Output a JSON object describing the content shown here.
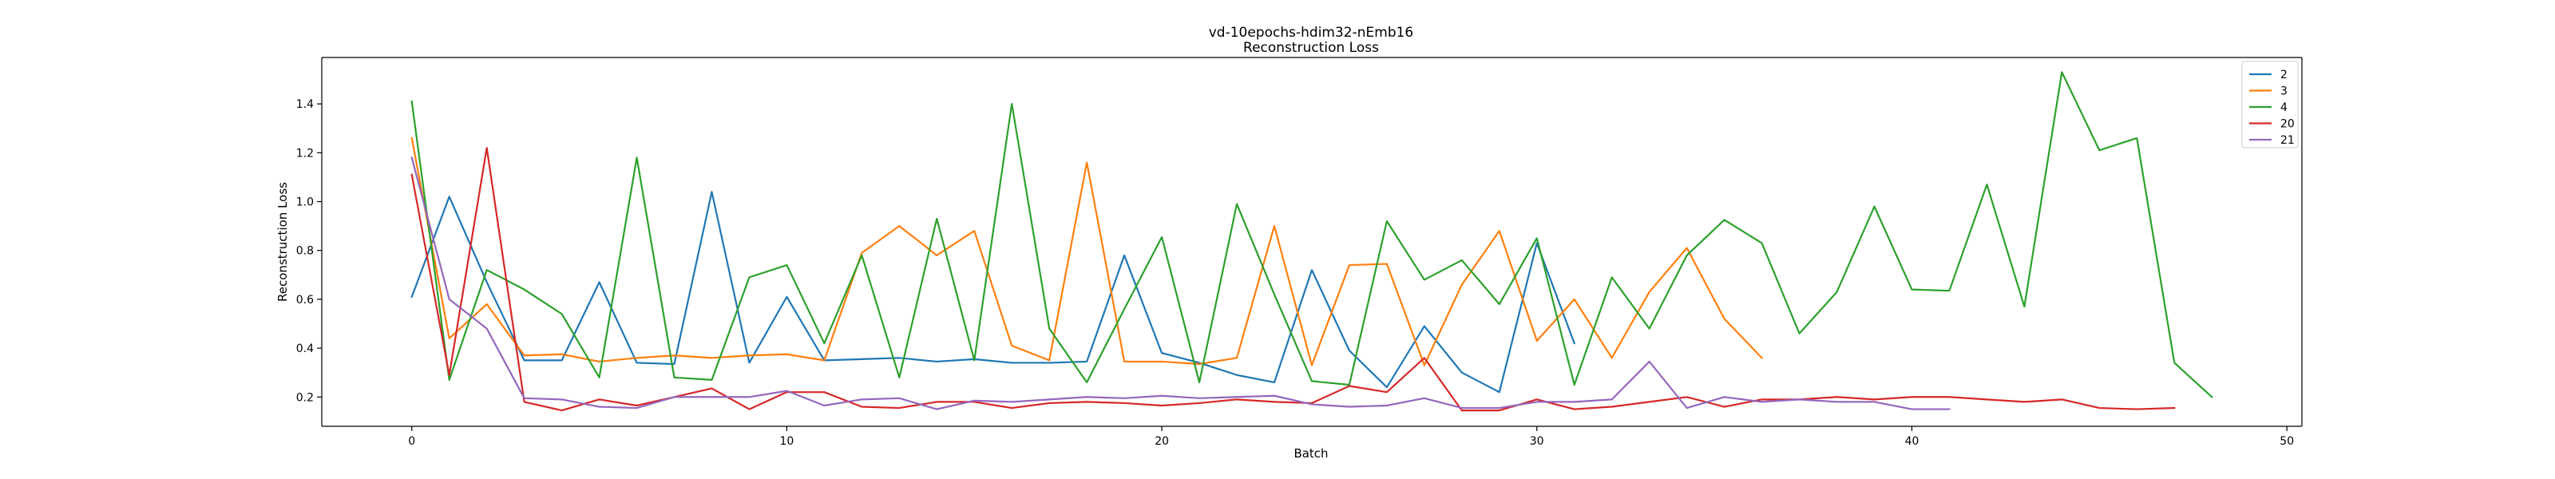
{
  "chart_data": {
    "type": "line",
    "title": "vd-10epochs-hdim32-nEmb16",
    "subtitle": "Reconstruction Loss",
    "xlabel": "Batch",
    "ylabel": "Reconstruction Loss",
    "xlim": [
      -2.4,
      50.4
    ],
    "ylim": [
      0.08,
      1.59
    ],
    "xticks": [
      0,
      10,
      20,
      30,
      40,
      50
    ],
    "yticks": [
      0.2,
      0.4,
      0.6,
      0.8,
      1.0,
      1.2,
      1.4
    ],
    "ytick_labels": [
      "0.2",
      "0.4",
      "0.6",
      "0.8",
      "1.0",
      "1.2",
      "1.4"
    ],
    "grid": false,
    "legend_position": "top-right",
    "series": [
      {
        "name": "2",
        "color": "#1f77b4",
        "values": [
          0.61,
          1.02,
          0.67,
          0.35,
          0.35,
          0.67,
          0.34,
          0.335,
          1.04,
          0.34,
          0.61,
          0.35,
          0.355,
          0.36,
          0.345,
          0.355,
          0.34,
          0.34,
          0.345,
          0.78,
          0.38,
          0.34,
          0.29,
          0.26,
          0.72,
          0.39,
          0.24,
          0.49,
          0.3,
          0.22,
          0.83,
          0.42
        ]
      },
      {
        "name": "3",
        "color": "#ff7f0e",
        "values": [
          1.26,
          0.44,
          0.58,
          0.37,
          0.375,
          0.345,
          0.36,
          0.37,
          0.36,
          0.37,
          0.375,
          0.35,
          0.79,
          0.9,
          0.78,
          0.88,
          0.41,
          0.35,
          1.16,
          0.345,
          0.345,
          0.335,
          0.36,
          0.9,
          0.33,
          0.74,
          0.745,
          0.33,
          0.66,
          0.88,
          0.43,
          0.6,
          0.36,
          0.63,
          0.81,
          0.52,
          0.36
        ]
      },
      {
        "name": "4",
        "color": "#2ca02c",
        "values": [
          1.41,
          0.27,
          0.72,
          0.64,
          0.54,
          0.28,
          1.18,
          0.28,
          0.27,
          0.69,
          0.74,
          0.42,
          0.78,
          0.28,
          0.93,
          0.35,
          1.4,
          0.48,
          0.26,
          0.56,
          0.855,
          0.26,
          0.99,
          0.62,
          0.265,
          0.25,
          0.92,
          0.68,
          0.76,
          0.58,
          0.85,
          0.25,
          0.69,
          0.48,
          0.78,
          0.925,
          0.83,
          0.46,
          0.63,
          0.98,
          0.64,
          0.635,
          1.07,
          0.57,
          1.53,
          1.21,
          1.26,
          0.34,
          0.2
        ]
      },
      {
        "name": "20",
        "color": "#d62728",
        "values": [
          1.11,
          0.29,
          1.22,
          0.18,
          0.145,
          0.19,
          0.165,
          0.2,
          0.235,
          0.15,
          0.22,
          0.22,
          0.16,
          0.155,
          0.18,
          0.18,
          0.155,
          0.175,
          0.18,
          0.175,
          0.165,
          0.175,
          0.19,
          0.18,
          0.175,
          0.245,
          0.22,
          0.36,
          0.145,
          0.145,
          0.19,
          0.15,
          0.16,
          0.18,
          0.2,
          0.16,
          0.19,
          0.19,
          0.2,
          0.19,
          0.2,
          0.2,
          0.19,
          0.18,
          0.19,
          0.155,
          0.15,
          0.155
        ]
      },
      {
        "name": "21",
        "color": "#9467bd",
        "values": [
          1.18,
          0.6,
          0.48,
          0.195,
          0.19,
          0.16,
          0.155,
          0.2,
          0.2,
          0.2,
          0.225,
          0.165,
          0.19,
          0.195,
          0.15,
          0.185,
          0.18,
          0.19,
          0.2,
          0.195,
          0.205,
          0.195,
          0.2,
          0.205,
          0.17,
          0.16,
          0.165,
          0.195,
          0.155,
          0.155,
          0.18,
          0.18,
          0.19,
          0.345,
          0.155,
          0.2,
          0.18,
          0.19,
          0.18,
          0.18,
          0.15,
          0.15
        ]
      }
    ]
  }
}
